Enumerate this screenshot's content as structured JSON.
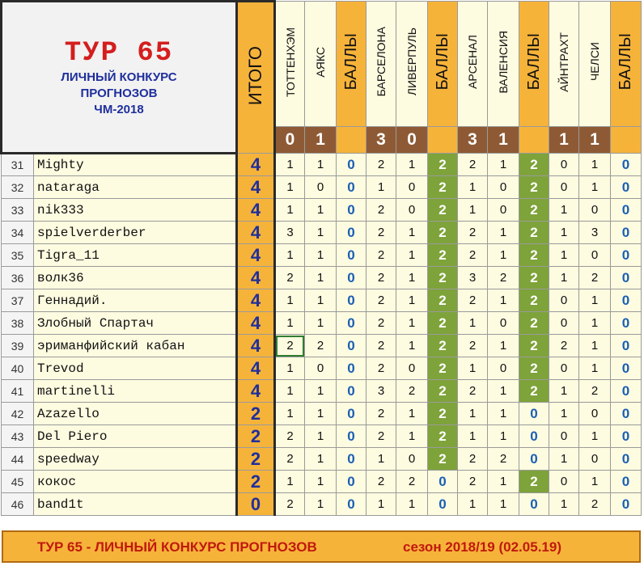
{
  "title": {
    "tour": "ТУР 65",
    "line1": "ЛИЧНЫЙ КОНКУРС",
    "line2": "ПРОГНОЗОВ",
    "line3": "ЧМ-2018"
  },
  "itogo_label": "ИТОГО",
  "bally_label": "БАЛЛЫ",
  "matches": [
    {
      "home": "ТОТТЕНХЭМ",
      "away": "АЯКС",
      "home_score": "0",
      "away_score": "1"
    },
    {
      "home": "БАРСЕЛОНА",
      "away": "ЛИВЕРПУЛЬ",
      "home_score": "3",
      "away_score": "0"
    },
    {
      "home": "АРСЕНАЛ",
      "away": "ВАЛЕНСИЯ",
      "home_score": "3",
      "away_score": "1"
    },
    {
      "home": "АЙНТРАХТ",
      "away": "ЧЕЛСИ",
      "home_score": "1",
      "away_score": "1"
    }
  ],
  "rows": [
    {
      "n": "31",
      "name": "Mighty",
      "total": "4",
      "p": [
        [
          "1",
          "1",
          "0"
        ],
        [
          "2",
          "1",
          "2"
        ],
        [
          "2",
          "1",
          "2"
        ],
        [
          "0",
          "1",
          "0"
        ]
      ]
    },
    {
      "n": "32",
      "name": "nataraga",
      "total": "4",
      "p": [
        [
          "1",
          "0",
          "0"
        ],
        [
          "1",
          "0",
          "2"
        ],
        [
          "1",
          "0",
          "2"
        ],
        [
          "0",
          "1",
          "0"
        ]
      ]
    },
    {
      "n": "33",
      "name": "nik333",
      "total": "4",
      "p": [
        [
          "1",
          "1",
          "0"
        ],
        [
          "2",
          "0",
          "2"
        ],
        [
          "1",
          "0",
          "2"
        ],
        [
          "1",
          "0",
          "0"
        ]
      ]
    },
    {
      "n": "34",
      "name": "spielverderber",
      "total": "4",
      "p": [
        [
          "3",
          "1",
          "0"
        ],
        [
          "2",
          "1",
          "2"
        ],
        [
          "2",
          "1",
          "2"
        ],
        [
          "1",
          "3",
          "0"
        ]
      ]
    },
    {
      "n": "35",
      "name": "Tigra_11",
      "total": "4",
      "p": [
        [
          "1",
          "1",
          "0"
        ],
        [
          "2",
          "1",
          "2"
        ],
        [
          "2",
          "1",
          "2"
        ],
        [
          "1",
          "0",
          "0"
        ]
      ]
    },
    {
      "n": "36",
      "name": "волк36",
      "total": "4",
      "p": [
        [
          "2",
          "1",
          "0"
        ],
        [
          "2",
          "1",
          "2"
        ],
        [
          "3",
          "2",
          "2"
        ],
        [
          "1",
          "2",
          "0"
        ]
      ]
    },
    {
      "n": "37",
      "name": "Геннадий.",
      "total": "4",
      "p": [
        [
          "1",
          "1",
          "0"
        ],
        [
          "2",
          "1",
          "2"
        ],
        [
          "2",
          "1",
          "2"
        ],
        [
          "0",
          "1",
          "0"
        ]
      ]
    },
    {
      "n": "38",
      "name": "Злобный Спартач",
      "total": "4",
      "p": [
        [
          "1",
          "1",
          "0"
        ],
        [
          "2",
          "1",
          "2"
        ],
        [
          "1",
          "0",
          "2"
        ],
        [
          "0",
          "1",
          "0"
        ]
      ]
    },
    {
      "n": "39",
      "name": "эриманфийский кабан",
      "total": "4",
      "p": [
        [
          "2",
          "2",
          "0"
        ],
        [
          "2",
          "1",
          "2"
        ],
        [
          "2",
          "1",
          "2"
        ],
        [
          "2",
          "1",
          "0"
        ]
      ]
    },
    {
      "n": "40",
      "name": "Trevod",
      "total": "4",
      "p": [
        [
          "1",
          "0",
          "0"
        ],
        [
          "2",
          "0",
          "2"
        ],
        [
          "1",
          "0",
          "2"
        ],
        [
          "0",
          "1",
          "0"
        ]
      ]
    },
    {
      "n": "41",
      "name": "martinelli",
      "total": "4",
      "p": [
        [
          "1",
          "1",
          "0"
        ],
        [
          "3",
          "2",
          "2"
        ],
        [
          "2",
          "1",
          "2"
        ],
        [
          "1",
          "2",
          "0"
        ]
      ]
    },
    {
      "n": "42",
      "name": "Azazello",
      "total": "2",
      "p": [
        [
          "1",
          "1",
          "0"
        ],
        [
          "2",
          "1",
          "2"
        ],
        [
          "1",
          "1",
          "0"
        ],
        [
          "1",
          "0",
          "0"
        ]
      ]
    },
    {
      "n": "43",
      "name": "Del Piero",
      "total": "2",
      "p": [
        [
          "2",
          "1",
          "0"
        ],
        [
          "2",
          "1",
          "2"
        ],
        [
          "1",
          "1",
          "0"
        ],
        [
          "0",
          "1",
          "0"
        ]
      ]
    },
    {
      "n": "44",
      "name": "speedway",
      "total": "2",
      "p": [
        [
          "2",
          "1",
          "0"
        ],
        [
          "1",
          "0",
          "2"
        ],
        [
          "2",
          "2",
          "0"
        ],
        [
          "1",
          "0",
          "0"
        ]
      ]
    },
    {
      "n": "45",
      "name": "кокос",
      "total": "2",
      "p": [
        [
          "1",
          "1",
          "0"
        ],
        [
          "2",
          "2",
          "0"
        ],
        [
          "2",
          "1",
          "2"
        ],
        [
          "0",
          "1",
          "0"
        ]
      ]
    },
    {
      "n": "46",
      "name": "band1t",
      "total": "0",
      "p": [
        [
          "2",
          "1",
          "0"
        ],
        [
          "1",
          "1",
          "0"
        ],
        [
          "1",
          "1",
          "0"
        ],
        [
          "1",
          "2",
          "0"
        ]
      ]
    }
  ],
  "footer": {
    "left": "ТУР 65 - ЛИЧНЫЙ КОНКУРС ПРОГНОЗОВ",
    "right": "сезон 2018/19  (02.05.19)"
  },
  "colors": {
    "orange": "#f6b33a",
    "green": "#7ea33a",
    "brown": "#8e5a35",
    "cream": "#fdfbe0",
    "red": "#d41e1e",
    "blue": "#1f2f9c"
  }
}
